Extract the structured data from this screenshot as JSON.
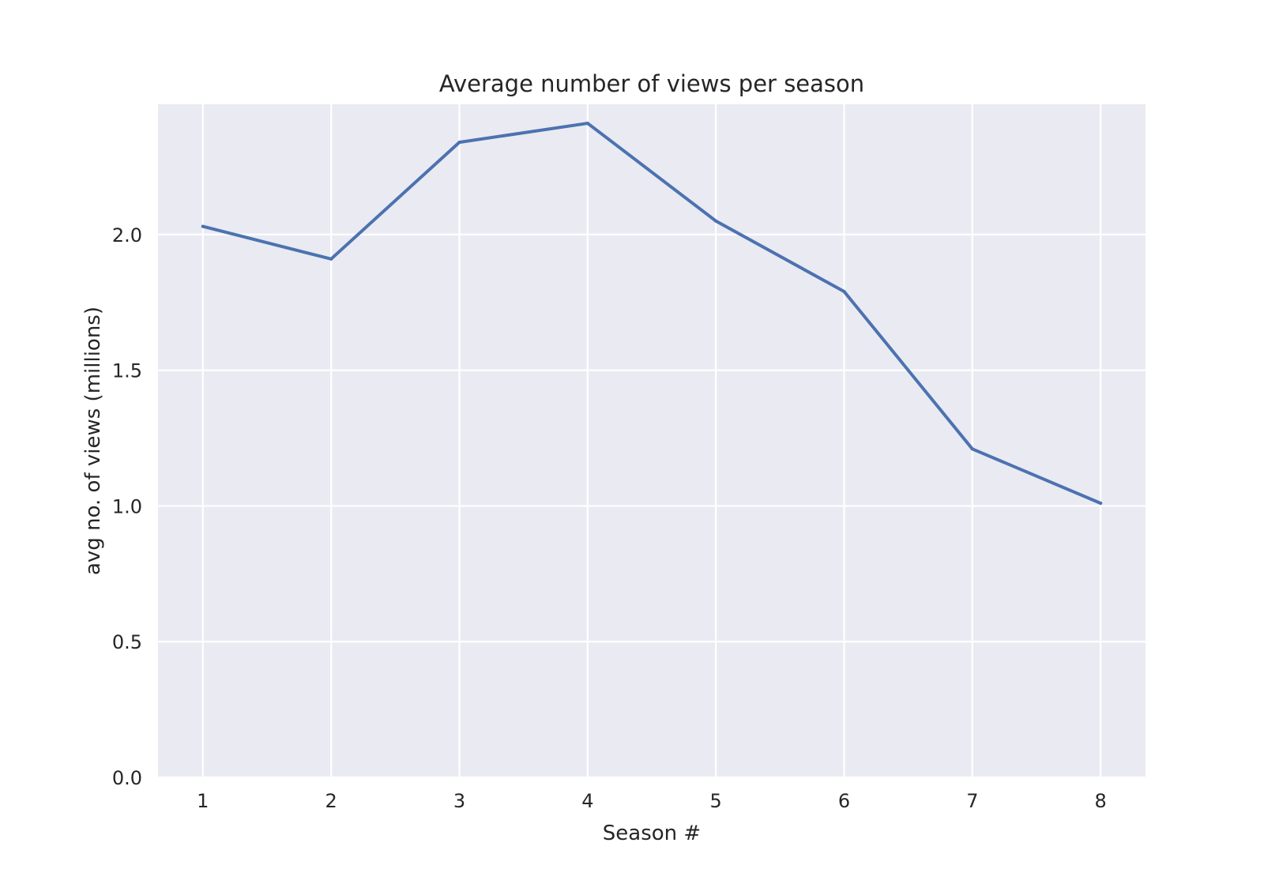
{
  "chart_data": {
    "type": "line",
    "title": "Average number of views per season",
    "xlabel": "Season #",
    "ylabel": "avg no. of views (millions)",
    "x": [
      1,
      2,
      3,
      4,
      5,
      6,
      7,
      8
    ],
    "xticks": [
      1,
      2,
      3,
      4,
      5,
      6,
      7,
      8
    ],
    "xtick_labels": [
      "1",
      "2",
      "3",
      "4",
      "5",
      "6",
      "7",
      "8"
    ],
    "yticks": [
      0.0,
      0.5,
      1.0,
      1.5,
      2.0
    ],
    "ytick_labels": [
      "0.0",
      "0.5",
      "1.0",
      "1.5",
      "2.0"
    ],
    "xlim": [
      0.65,
      8.35
    ],
    "ylim": [
      0.0,
      2.48
    ],
    "grid": true,
    "series": [
      {
        "values": [
          2.03,
          1.91,
          2.34,
          2.41,
          2.05,
          1.79,
          1.21,
          1.01
        ]
      }
    ],
    "colors": {
      "plot_background": "#eaeaf2",
      "grid": "#ffffff",
      "line": "#4c72b0",
      "text": "#262626"
    }
  }
}
